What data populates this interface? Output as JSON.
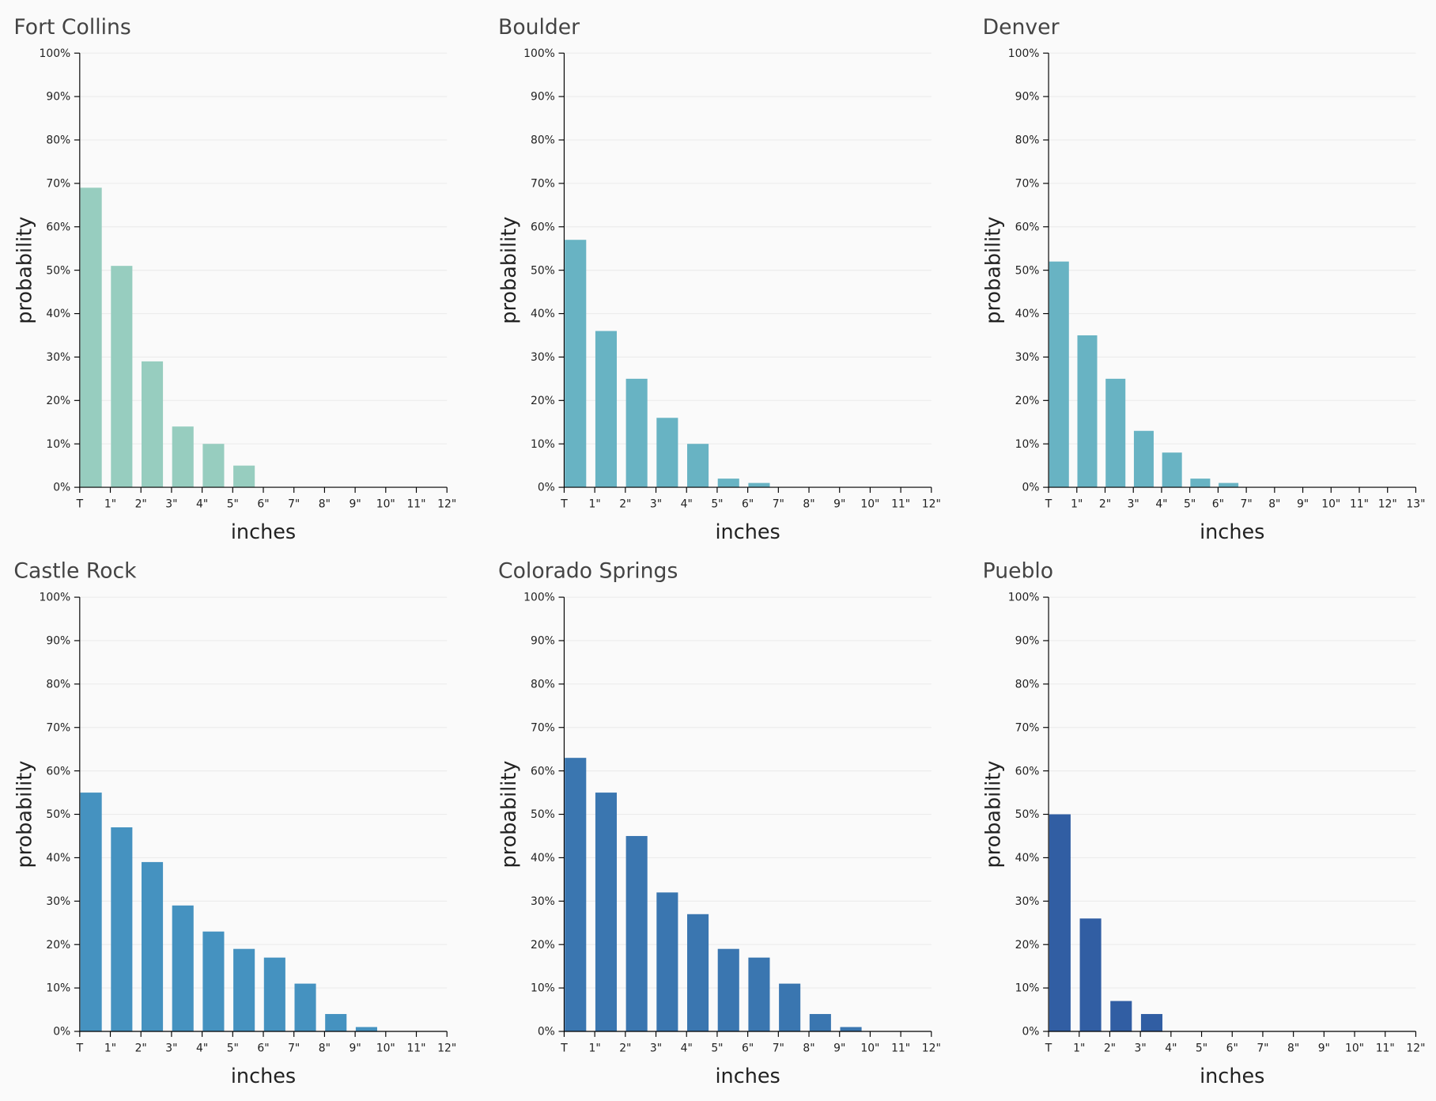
{
  "chart_data": [
    {
      "type": "histogram",
      "title": "Fort Collins",
      "x_label": "inches",
      "y_label": "probability",
      "color": "#97cdbf",
      "bins": [
        0,
        1,
        2,
        3,
        4,
        5,
        6,
        7,
        8,
        9,
        10,
        11,
        12
      ],
      "values": [
        69,
        51,
        29,
        14,
        10,
        5,
        0,
        0,
        0,
        0,
        0,
        0
      ],
      "xlim": [
        0,
        12
      ],
      "xticks": [
        {
          "value": 0,
          "label": "T"
        },
        {
          "value": 1,
          "label": "1\""
        },
        {
          "value": 2,
          "label": "2\""
        },
        {
          "value": 3,
          "label": "3\""
        },
        {
          "value": 4,
          "label": "4\""
        },
        {
          "value": 5,
          "label": "5\""
        },
        {
          "value": 6,
          "label": "6\""
        },
        {
          "value": 7,
          "label": "7\""
        },
        {
          "value": 8,
          "label": "8\""
        },
        {
          "value": 9,
          "label": "9\""
        },
        {
          "value": 10,
          "label": "10\""
        },
        {
          "value": 11,
          "label": "11\""
        },
        {
          "value": 12,
          "label": "12\""
        }
      ],
      "ylim": [
        0,
        100
      ],
      "yticks": [
        {
          "value": 0,
          "label": "0%"
        },
        {
          "value": 10,
          "label": "10%"
        },
        {
          "value": 20,
          "label": "20%"
        },
        {
          "value": 30,
          "label": "30%"
        },
        {
          "value": 40,
          "label": "40%"
        },
        {
          "value": 50,
          "label": "50%"
        },
        {
          "value": 60,
          "label": "60%"
        },
        {
          "value": 70,
          "label": "70%"
        },
        {
          "value": 80,
          "label": "80%"
        },
        {
          "value": 90,
          "label": "90%"
        },
        {
          "value": 100,
          "label": "100%"
        }
      ],
      "grid": true
    },
    {
      "type": "histogram",
      "title": "Boulder",
      "x_label": "inches",
      "y_label": "probability",
      "color": "#68b3c3",
      "bins": [
        0,
        1,
        2,
        3,
        4,
        5,
        6,
        7,
        8,
        9,
        10,
        11,
        12
      ],
      "values": [
        57,
        36,
        25,
        16,
        10,
        2,
        1,
        0,
        0,
        0,
        0,
        0
      ],
      "xlim": [
        0,
        12
      ],
      "xticks": [
        {
          "value": 0,
          "label": "T"
        },
        {
          "value": 1,
          "label": "1\""
        },
        {
          "value": 2,
          "label": "2\""
        },
        {
          "value": 3,
          "label": "3\""
        },
        {
          "value": 4,
          "label": "4\""
        },
        {
          "value": 5,
          "label": "5\""
        },
        {
          "value": 6,
          "label": "6\""
        },
        {
          "value": 7,
          "label": "7\""
        },
        {
          "value": 8,
          "label": "8\""
        },
        {
          "value": 9,
          "label": "9\""
        },
        {
          "value": 10,
          "label": "10\""
        },
        {
          "value": 11,
          "label": "11\""
        },
        {
          "value": 12,
          "label": "12\""
        }
      ],
      "ylim": [
        0,
        100
      ],
      "yticks": [
        {
          "value": 0,
          "label": "0%"
        },
        {
          "value": 10,
          "label": "10%"
        },
        {
          "value": 20,
          "label": "20%"
        },
        {
          "value": 30,
          "label": "30%"
        },
        {
          "value": 40,
          "label": "40%"
        },
        {
          "value": 50,
          "label": "50%"
        },
        {
          "value": 60,
          "label": "60%"
        },
        {
          "value": 70,
          "label": "70%"
        },
        {
          "value": 80,
          "label": "80%"
        },
        {
          "value": 90,
          "label": "90%"
        },
        {
          "value": 100,
          "label": "100%"
        }
      ],
      "grid": true
    },
    {
      "type": "histogram",
      "title": "Denver",
      "x_label": "inches",
      "y_label": "probability",
      "color": "#68b3c3",
      "bins": [
        0,
        1,
        2,
        3,
        4,
        5,
        6,
        7,
        8,
        9,
        10,
        11,
        12,
        13
      ],
      "values": [
        52,
        35,
        25,
        13,
        8,
        2,
        1,
        0,
        0,
        0,
        0,
        0,
        0
      ],
      "xlim": [
        0,
        13
      ],
      "xticks": [
        {
          "value": 0,
          "label": "T"
        },
        {
          "value": 1,
          "label": "1\""
        },
        {
          "value": 2,
          "label": "2\""
        },
        {
          "value": 3,
          "label": "3\""
        },
        {
          "value": 4,
          "label": "4\""
        },
        {
          "value": 5,
          "label": "5\""
        },
        {
          "value": 6,
          "label": "6\""
        },
        {
          "value": 7,
          "label": "7\""
        },
        {
          "value": 8,
          "label": "8\""
        },
        {
          "value": 9,
          "label": "9\""
        },
        {
          "value": 10,
          "label": "10\""
        },
        {
          "value": 11,
          "label": "11\""
        },
        {
          "value": 12,
          "label": "12\""
        },
        {
          "value": 13,
          "label": "13\""
        }
      ],
      "ylim": [
        0,
        100
      ],
      "yticks": [
        {
          "value": 0,
          "label": "0%"
        },
        {
          "value": 10,
          "label": "10%"
        },
        {
          "value": 20,
          "label": "20%"
        },
        {
          "value": 30,
          "label": "30%"
        },
        {
          "value": 40,
          "label": "40%"
        },
        {
          "value": 50,
          "label": "50%"
        },
        {
          "value": 60,
          "label": "60%"
        },
        {
          "value": 70,
          "label": "70%"
        },
        {
          "value": 80,
          "label": "80%"
        },
        {
          "value": 90,
          "label": "90%"
        },
        {
          "value": 100,
          "label": "100%"
        }
      ],
      "grid": true
    },
    {
      "type": "histogram",
      "title": "Castle Rock",
      "x_label": "inches",
      "y_label": "probability",
      "color": "#4592c0",
      "bins": [
        0,
        1,
        2,
        3,
        4,
        5,
        6,
        7,
        8,
        9,
        10,
        11,
        12
      ],
      "values": [
        55,
        47,
        39,
        29,
        23,
        19,
        17,
        11,
        4,
        1,
        0,
        0
      ],
      "xlim": [
        0,
        12
      ],
      "xticks": [
        {
          "value": 0,
          "label": "T"
        },
        {
          "value": 1,
          "label": "1\""
        },
        {
          "value": 2,
          "label": "2\""
        },
        {
          "value": 3,
          "label": "3\""
        },
        {
          "value": 4,
          "label": "4\""
        },
        {
          "value": 5,
          "label": "5\""
        },
        {
          "value": 6,
          "label": "6\""
        },
        {
          "value": 7,
          "label": "7\""
        },
        {
          "value": 8,
          "label": "8\""
        },
        {
          "value": 9,
          "label": "9\""
        },
        {
          "value": 10,
          "label": "10\""
        },
        {
          "value": 11,
          "label": "11\""
        },
        {
          "value": 12,
          "label": "12\""
        }
      ],
      "ylim": [
        0,
        100
      ],
      "yticks": [
        {
          "value": 0,
          "label": "0%"
        },
        {
          "value": 10,
          "label": "10%"
        },
        {
          "value": 20,
          "label": "20%"
        },
        {
          "value": 30,
          "label": "30%"
        },
        {
          "value": 40,
          "label": "40%"
        },
        {
          "value": 50,
          "label": "50%"
        },
        {
          "value": 60,
          "label": "60%"
        },
        {
          "value": 70,
          "label": "70%"
        },
        {
          "value": 80,
          "label": "80%"
        },
        {
          "value": 90,
          "label": "90%"
        },
        {
          "value": 100,
          "label": "100%"
        }
      ],
      "grid": true
    },
    {
      "type": "histogram",
      "title": "Colorado Springs",
      "x_label": "inches",
      "y_label": "probability",
      "color": "#3a76b0",
      "bins": [
        0,
        1,
        2,
        3,
        4,
        5,
        6,
        7,
        8,
        9,
        10,
        11,
        12
      ],
      "values": [
        63,
        55,
        45,
        32,
        27,
        19,
        17,
        11,
        4,
        1,
        0,
        0
      ],
      "xlim": [
        0,
        12
      ],
      "xticks": [
        {
          "value": 0,
          "label": "T"
        },
        {
          "value": 1,
          "label": "1\""
        },
        {
          "value": 2,
          "label": "2\""
        },
        {
          "value": 3,
          "label": "3\""
        },
        {
          "value": 4,
          "label": "4\""
        },
        {
          "value": 5,
          "label": "5\""
        },
        {
          "value": 6,
          "label": "6\""
        },
        {
          "value": 7,
          "label": "7\""
        },
        {
          "value": 8,
          "label": "8\""
        },
        {
          "value": 9,
          "label": "9\""
        },
        {
          "value": 10,
          "label": "10\""
        },
        {
          "value": 11,
          "label": "11\""
        },
        {
          "value": 12,
          "label": "12\""
        }
      ],
      "ylim": [
        0,
        100
      ],
      "yticks": [
        {
          "value": 0,
          "label": "0%"
        },
        {
          "value": 10,
          "label": "10%"
        },
        {
          "value": 20,
          "label": "20%"
        },
        {
          "value": 30,
          "label": "30%"
        },
        {
          "value": 40,
          "label": "40%"
        },
        {
          "value": 50,
          "label": "50%"
        },
        {
          "value": 60,
          "label": "60%"
        },
        {
          "value": 70,
          "label": "70%"
        },
        {
          "value": 80,
          "label": "80%"
        },
        {
          "value": 90,
          "label": "90%"
        },
        {
          "value": 100,
          "label": "100%"
        }
      ],
      "grid": true
    },
    {
      "type": "histogram",
      "title": "Pueblo",
      "x_label": "inches",
      "y_label": "probability",
      "color": "#315ea3",
      "bins": [
        0,
        1,
        2,
        3,
        4,
        5,
        6,
        7,
        8,
        9,
        10,
        11,
        12
      ],
      "values": [
        50,
        26,
        7,
        4,
        0,
        0,
        0,
        0,
        0,
        0,
        0,
        0
      ],
      "xlim": [
        0,
        12
      ],
      "xticks": [
        {
          "value": 0,
          "label": "T"
        },
        {
          "value": 1,
          "label": "1\""
        },
        {
          "value": 2,
          "label": "2\""
        },
        {
          "value": 3,
          "label": "3\""
        },
        {
          "value": 4,
          "label": "4\""
        },
        {
          "value": 5,
          "label": "5\""
        },
        {
          "value": 6,
          "label": "6\""
        },
        {
          "value": 7,
          "label": "7\""
        },
        {
          "value": 8,
          "label": "8\""
        },
        {
          "value": 9,
          "label": "9\""
        },
        {
          "value": 10,
          "label": "10\""
        },
        {
          "value": 11,
          "label": "11\""
        },
        {
          "value": 12,
          "label": "12\""
        }
      ],
      "ylim": [
        0,
        100
      ],
      "yticks": [
        {
          "value": 0,
          "label": "0%"
        },
        {
          "value": 10,
          "label": "10%"
        },
        {
          "value": 20,
          "label": "20%"
        },
        {
          "value": 30,
          "label": "30%"
        },
        {
          "value": 40,
          "label": "40%"
        },
        {
          "value": 50,
          "label": "50%"
        },
        {
          "value": 60,
          "label": "60%"
        },
        {
          "value": 70,
          "label": "70%"
        },
        {
          "value": 80,
          "label": "80%"
        },
        {
          "value": 90,
          "label": "90%"
        },
        {
          "value": 100,
          "label": "100%"
        }
      ],
      "grid": true
    }
  ]
}
